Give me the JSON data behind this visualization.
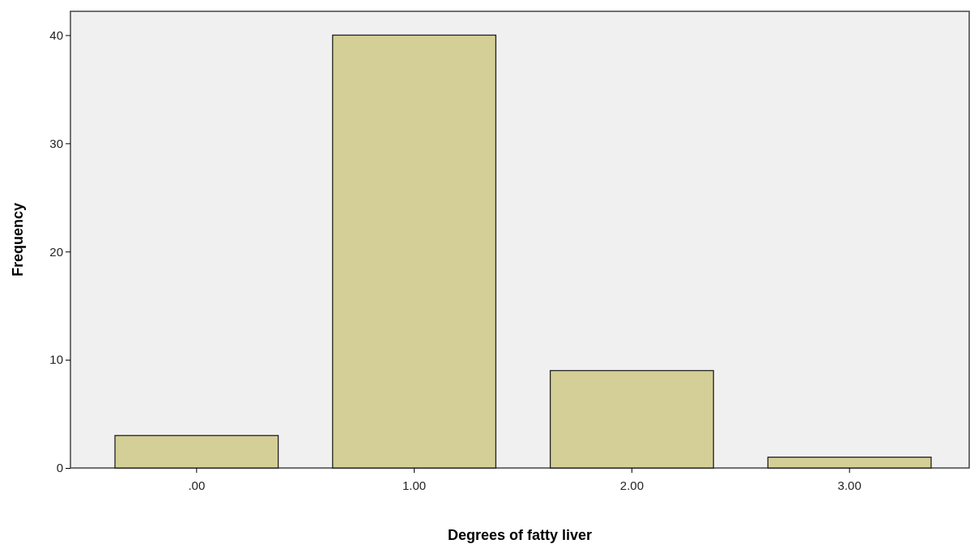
{
  "chart_data": {
    "type": "bar",
    "xlabel": "Degrees of fatty liver",
    "ylabel": "Frequency",
    "categories": [
      ".00",
      "1.00",
      "2.00",
      "3.00"
    ],
    "values": [
      3,
      40,
      9,
      1
    ],
    "color": "#d4cf96",
    "ylim": [
      0,
      42.2
    ],
    "yticks": [
      0,
      10,
      20,
      30,
      40
    ]
  }
}
